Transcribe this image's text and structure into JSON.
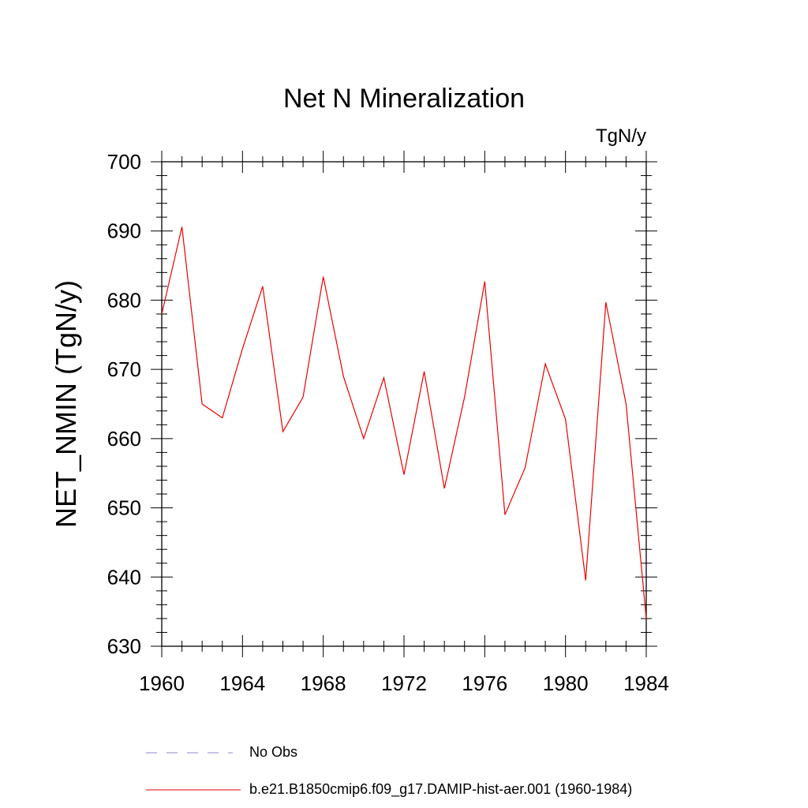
{
  "chart_data": {
    "type": "line",
    "title": "Net N Mineralization",
    "units_label": "TgN/y",
    "ylabel": "NET_NMIN  (TgN/y)",
    "xlabel": "",
    "xlim": [
      1960,
      1984
    ],
    "ylim": [
      630,
      700
    ],
    "x_ticks": [
      1960,
      1964,
      1968,
      1972,
      1976,
      1980,
      1984
    ],
    "y_ticks": [
      630,
      640,
      650,
      660,
      670,
      680,
      690,
      700
    ],
    "grid": false,
    "legend_position": "bottom",
    "series": [
      {
        "name": "No Obs",
        "color": "#8888cc",
        "dash": "dashed",
        "x": [],
        "values": []
      },
      {
        "name": "b.e21.B1850cmip6.f09_g17.DAMIP-hist-aer.001 (1960-1984)",
        "color": "#ee0000",
        "dash": "solid",
        "x": [
          1960,
          1961,
          1962,
          1963,
          1964,
          1965,
          1966,
          1967,
          1968,
          1969,
          1970,
          1971,
          1972,
          1973,
          1974,
          1975,
          1976,
          1977,
          1978,
          1979,
          1980,
          1981,
          1982,
          1983,
          1984
        ],
        "values": [
          678,
          690.6,
          665,
          663,
          673,
          682,
          661,
          666,
          683.4,
          669,
          660,
          668.8,
          654.8,
          669.7,
          652.8,
          666,
          682.7,
          649,
          655.8,
          670.8,
          662.8,
          639.5,
          679.7,
          665,
          634
        ]
      }
    ]
  }
}
